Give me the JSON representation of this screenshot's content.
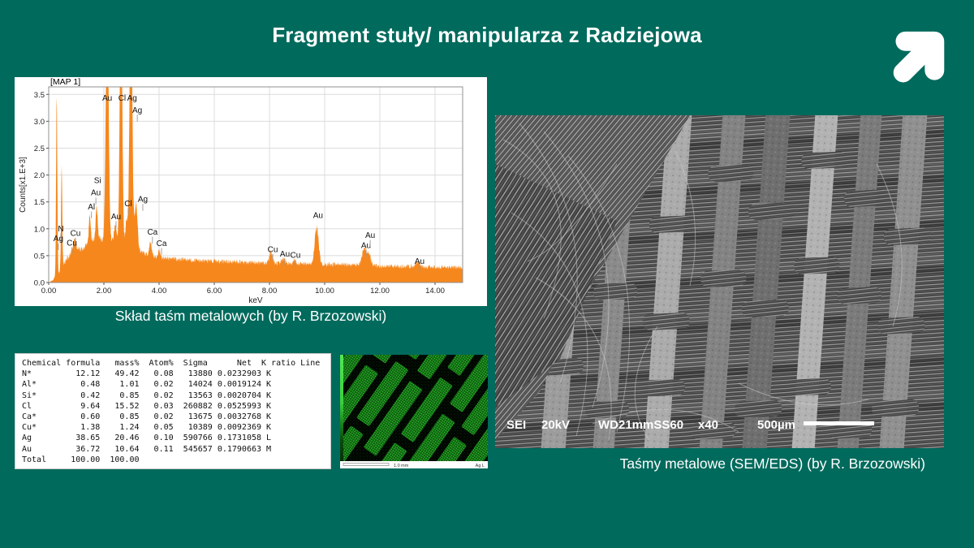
{
  "slide": {
    "title": "Fragment stuły/ manipularza z Radziejowa",
    "background_color": "#006A5C",
    "logo_icon": "arrow-up-right-icon"
  },
  "captions": {
    "spectrum": "Skład taśm metalowych (by R. Brzozowski)",
    "sem": "Taśmy metalowe (SEM/EDS) (by R. Brzozowski)"
  },
  "chart_data": {
    "type": "area",
    "title": "[MAP 1]",
    "xlabel": "keV",
    "ylabel": "Counts[x1.E+3]",
    "xlim": [
      0,
      15
    ],
    "ylim": [
      0,
      3.64
    ],
    "x_ticks": [
      "0.00",
      "2.00",
      "4.00",
      "6.00",
      "8.00",
      "10.00",
      "12.00",
      "14.00"
    ],
    "x_tick_values": [
      0,
      2,
      4,
      6,
      8,
      10,
      12,
      14
    ],
    "y_ticks": [
      "0.0",
      "0.5",
      "1.0",
      "1.5",
      "2.0",
      "2.5",
      "3.0",
      "3.5"
    ],
    "y_tick_values": [
      0,
      0.5,
      1,
      1.5,
      2,
      2.5,
      3,
      3.5
    ],
    "grid": true,
    "legend_position": "none",
    "series_color": "#F6871D",
    "continuum": [
      [
        0,
        0.01
      ],
      [
        0.12,
        0.03
      ],
      [
        0.3,
        0.12
      ],
      [
        0.5,
        0.3
      ],
      [
        0.62,
        0.42
      ],
      [
        0.8,
        0.52
      ],
      [
        1.0,
        0.62
      ],
      [
        1.2,
        0.62
      ],
      [
        1.45,
        0.72
      ],
      [
        1.7,
        0.8
      ],
      [
        2.0,
        0.8
      ],
      [
        2.4,
        0.78
      ],
      [
        2.8,
        0.72
      ],
      [
        3.1,
        0.65
      ],
      [
        3.4,
        0.55
      ],
      [
        3.8,
        0.48
      ],
      [
        4.3,
        0.45
      ],
      [
        5,
        0.42
      ],
      [
        6,
        0.4
      ],
      [
        7,
        0.38
      ],
      [
        8,
        0.36
      ],
      [
        9,
        0.35
      ],
      [
        10,
        0.34
      ],
      [
        11,
        0.33
      ],
      [
        12,
        0.31
      ],
      [
        13,
        0.3
      ],
      [
        14,
        0.29
      ],
      [
        15,
        0.28
      ]
    ],
    "peaks": [
      {
        "kev": 0.29,
        "height": 3.42,
        "sigma": 0.022
      },
      {
        "kev": 0.47,
        "height": 1.85,
        "sigma": 0.022
      },
      {
        "kev": 0.93,
        "height": 0.18,
        "sigma": 0.06
      },
      {
        "kev": 1.49,
        "height": 0.55,
        "sigma": 0.032
      },
      {
        "kev": 1.74,
        "height": 0.58,
        "sigma": 0.038
      },
      {
        "kev": 2.12,
        "height": 4.6,
        "sigma": 0.05
      },
      {
        "kev": 2.41,
        "height": 0.28,
        "sigma": 0.04
      },
      {
        "kev": 2.62,
        "height": 4.6,
        "sigma": 0.045
      },
      {
        "kev": 2.82,
        "height": 0.45,
        "sigma": 0.035
      },
      {
        "kev": 2.98,
        "height": 4.6,
        "sigma": 0.05
      },
      {
        "kev": 3.17,
        "height": 0.85,
        "sigma": 0.05
      },
      {
        "kev": 3.69,
        "height": 0.28,
        "sigma": 0.042
      },
      {
        "kev": 4.01,
        "height": 0.12,
        "sigma": 0.042
      },
      {
        "kev": 8.05,
        "height": 0.2,
        "sigma": 0.06
      },
      {
        "kev": 8.49,
        "height": 0.1,
        "sigma": 0.06
      },
      {
        "kev": 8.91,
        "height": 0.06,
        "sigma": 0.055
      },
      {
        "kev": 9.71,
        "height": 0.7,
        "sigma": 0.07
      },
      {
        "kev": 11.44,
        "height": 0.32,
        "sigma": 0.085
      },
      {
        "kev": 11.61,
        "height": 0.17,
        "sigma": 0.07
      },
      {
        "kev": 13.38,
        "height": 0.09,
        "sigma": 0.07
      }
    ],
    "peak_labels": [
      {
        "text": "Ag",
        "kev": 0.35,
        "counts": 0.77,
        "leader": true
      },
      {
        "text": "N",
        "kev": 0.44,
        "counts": 0.95,
        "leader": true
      },
      {
        "text": "Cu",
        "kev": 0.84,
        "counts": 0.69,
        "leader": true
      },
      {
        "text": "Cu",
        "kev": 0.97,
        "counts": 0.87,
        "leader": true
      },
      {
        "text": "Al",
        "kev": 1.55,
        "counts": 1.36,
        "leader": true
      },
      {
        "text": "Au",
        "kev": 1.71,
        "counts": 1.62,
        "leader": true
      },
      {
        "text": "Si",
        "kev": 1.77,
        "counts": 1.85,
        "leader": false
      },
      {
        "text": "Au",
        "kev": 2.12,
        "counts": 3.38,
        "leader": false
      },
      {
        "text": "Cl",
        "kev": 2.66,
        "counts": 3.38,
        "leader": false
      },
      {
        "text": "Ag",
        "kev": 3.02,
        "counts": 3.38,
        "leader": false
      },
      {
        "text": "Ag",
        "kev": 3.21,
        "counts": 3.16,
        "leader": true
      },
      {
        "text": "Au",
        "kev": 2.44,
        "counts": 1.18,
        "leader": true
      },
      {
        "text": "Cl",
        "kev": 2.88,
        "counts": 1.42,
        "leader": true
      },
      {
        "text": "Ag",
        "kev": 3.41,
        "counts": 1.5,
        "leader": true
      },
      {
        "text": "Ca",
        "kev": 3.76,
        "counts": 0.89,
        "leader": true
      },
      {
        "text": "Ca",
        "kev": 4.09,
        "counts": 0.68,
        "leader": true
      },
      {
        "text": "Cu",
        "kev": 8.12,
        "counts": 0.57,
        "leader": true
      },
      {
        "text": "Au",
        "kev": 8.56,
        "counts": 0.48,
        "leader": true
      },
      {
        "text": "Cu",
        "kev": 8.94,
        "counts": 0.46,
        "leader": true
      },
      {
        "text": "Au",
        "kev": 9.76,
        "counts": 1.2,
        "leader": false
      },
      {
        "text": "Au",
        "kev": 11.5,
        "counts": 0.64,
        "leader": true
      },
      {
        "text": "Au",
        "kev": 11.65,
        "counts": 0.83,
        "leader": true
      },
      {
        "text": "Au",
        "kev": 13.44,
        "counts": 0.35,
        "leader": true
      }
    ]
  },
  "eds_table": {
    "header_line": "Chemical formula   mass%  Atom%  Sigma      Net  K ratio Line",
    "columns": [
      "Chemical formula",
      "mass%",
      "Atom%",
      "Sigma",
      "Net",
      "K ratio",
      "Line"
    ],
    "rows": [
      [
        "N*",
        "12.12",
        "49.42",
        "0.08",
        "13880",
        "0.0232903",
        "K"
      ],
      [
        "Al*",
        "0.48",
        "1.01",
        "0.02",
        "14024",
        "0.0019124",
        "K"
      ],
      [
        "Si*",
        "0.42",
        "0.85",
        "0.02",
        "13563",
        "0.0020704",
        "K"
      ],
      [
        "Cl",
        "9.64",
        "15.52",
        "0.03",
        "260882",
        "0.0525993",
        "K"
      ],
      [
        "Ca*",
        "0.60",
        "0.85",
        "0.02",
        "13675",
        "0.0032768",
        "K"
      ],
      [
        "Cu*",
        "1.38",
        "1.24",
        "0.05",
        "10389",
        "0.0092369",
        "K"
      ],
      [
        "Ag",
        "38.65",
        "20.46",
        "0.10",
        "590766",
        "0.1731058",
        "L"
      ],
      [
        "Au",
        "36.72",
        "10.64",
        "0.11",
        "545657",
        "0.1790663",
        "M"
      ],
      [
        "Total",
        "100.00",
        "100.00",
        "",
        "",
        "",
        ""
      ]
    ]
  },
  "eds_map": {
    "scale_label": "1.0 mm",
    "element_label": "Ag L",
    "accent_color": "#2ECC2E"
  },
  "sem": {
    "mode": "SEI",
    "voltage": "20kV",
    "wd": "WD21mmSS60",
    "magnification": "x40",
    "scale": "500µm"
  }
}
